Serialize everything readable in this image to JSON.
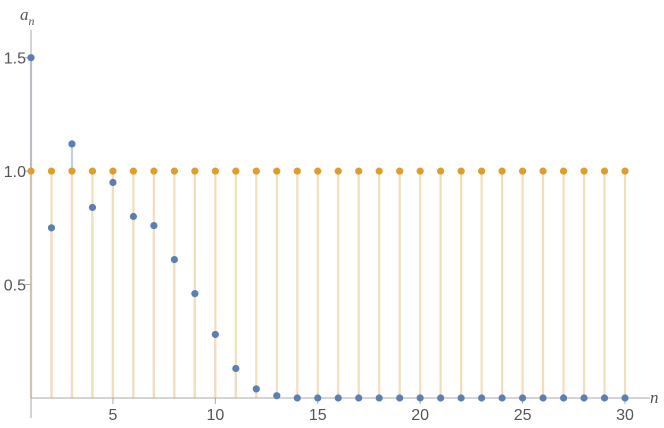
{
  "chart_data": {
    "type": "scatter",
    "subtype": "discrete-stem-plot",
    "xlabel": "n",
    "ylabel": "a",
    "ylabel_subscript": "n",
    "xlim": [
      1,
      30
    ],
    "ylim": [
      0,
      1.6
    ],
    "x_ticks": [
      "5",
      "10",
      "15",
      "20",
      "25",
      "30"
    ],
    "y_ticks": [
      "0.5",
      "1.0",
      "1.5"
    ],
    "x_tick_values": [
      5,
      10,
      15,
      20,
      25,
      30
    ],
    "y_tick_values": [
      0.5,
      1.0,
      1.5
    ],
    "x": [
      1,
      2,
      3,
      4,
      5,
      6,
      7,
      8,
      9,
      10,
      11,
      12,
      13,
      14,
      15,
      16,
      17,
      18,
      19,
      20,
      21,
      22,
      23,
      24,
      25,
      26,
      27,
      28,
      29,
      30
    ],
    "series": [
      {
        "color": "#5b7fb3",
        "stem_color": "#c5d0de",
        "values": [
          1.5,
          0.75,
          1.12,
          0.84,
          0.95,
          0.8,
          0.76,
          0.61,
          0.46,
          0.28,
          0.13,
          0.04,
          0.01,
          0.0,
          0.0,
          0.0,
          0.0,
          0.0,
          0.0,
          0.0,
          0.0,
          0.0,
          0.0,
          0.0,
          0.0,
          0.0,
          0.0,
          0.0,
          0.0,
          0.0
        ]
      },
      {
        "color": "#e09d2c",
        "stem_color": "#f3deba",
        "values": [
          1.0,
          1.0,
          1.0,
          1.0,
          1.0,
          1.0,
          1.0,
          1.0,
          1.0,
          1.0,
          1.0,
          1.0,
          1.0,
          1.0,
          1.0,
          1.0,
          1.0,
          1.0,
          1.0,
          1.0,
          1.0,
          1.0,
          1.0,
          1.0,
          1.0,
          1.0,
          1.0,
          1.0,
          1.0,
          1.0
        ]
      }
    ],
    "axis_color": "#aaaaaa",
    "grid": false,
    "legend": "none"
  }
}
